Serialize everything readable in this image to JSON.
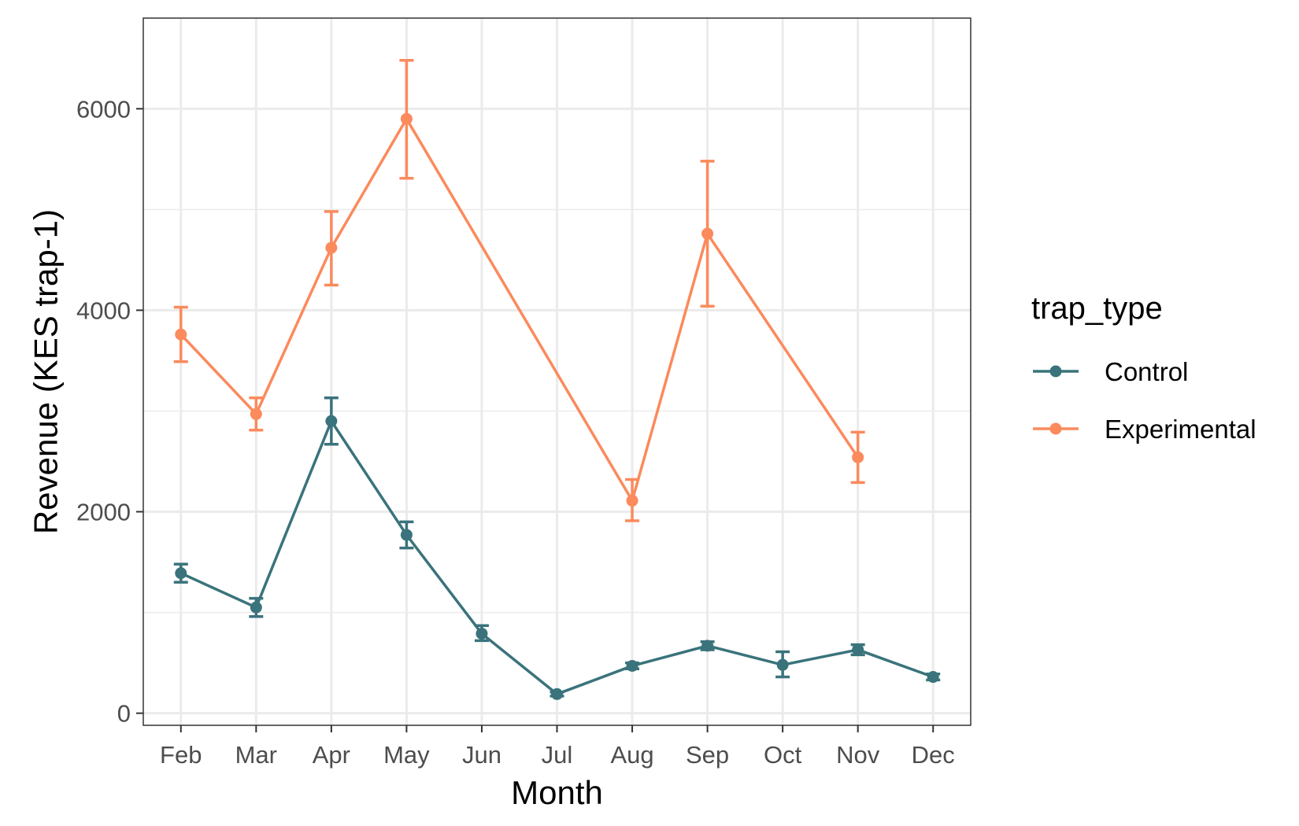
{
  "chart_data": {
    "type": "line",
    "categories": [
      "Feb",
      "Mar",
      "Apr",
      "May",
      "Jun",
      "Jul",
      "Aug",
      "Sep",
      "Oct",
      "Nov",
      "Dec"
    ],
    "xlabel": "Month",
    "ylabel": "Revenue (KES trap-1)",
    "ylim": [
      -120,
      6900
    ],
    "yticks": [
      0,
      2000,
      4000,
      6000
    ],
    "y_minor_gridlines": [
      1000,
      3000,
      5000
    ],
    "grid": true,
    "legend": {
      "title": "trap_type",
      "position": "right"
    },
    "series": [
      {
        "name": "Control",
        "color": "#3a737c",
        "values": [
          1390,
          1050,
          2900,
          1770,
          790,
          190,
          470,
          670,
          480,
          630,
          360
        ],
        "error_low": [
          1300,
          960,
          2670,
          1640,
          720,
          170,
          440,
          630,
          360,
          580,
          330
        ],
        "error_high": [
          1480,
          1140,
          3130,
          1900,
          870,
          210,
          500,
          710,
          610,
          680,
          390
        ]
      },
      {
        "name": "Experimental",
        "color": "#fb8a5c",
        "values": [
          3760,
          2970,
          4620,
          5900,
          null,
          null,
          2110,
          4760,
          null,
          2540,
          null
        ],
        "error_low": [
          3490,
          2810,
          4250,
          5310,
          null,
          null,
          1910,
          4040,
          null,
          2290,
          null
        ],
        "error_high": [
          4030,
          3130,
          4980,
          6480,
          null,
          null,
          2320,
          5480,
          null,
          2790,
          null
        ]
      }
    ]
  }
}
